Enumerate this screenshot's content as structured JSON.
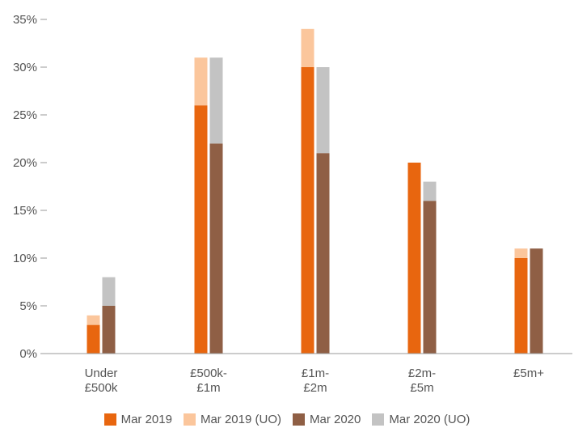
{
  "chart_data": {
    "type": "bar",
    "stacked_pairs": true,
    "categories": [
      [
        "Under",
        "£500k"
      ],
      [
        "£500k-",
        "£1m"
      ],
      [
        "£1m-",
        "£2m"
      ],
      [
        "£2m-",
        "£5m"
      ],
      [
        "£5m+"
      ]
    ],
    "series": [
      {
        "name": "Mar 2019",
        "values": [
          3,
          26,
          30,
          20,
          10
        ]
      },
      {
        "name": "Mar 2019 (UO)",
        "values": [
          1,
          5,
          4,
          0,
          1
        ]
      },
      {
        "name": "Mar 2020",
        "values": [
          5,
          22,
          21,
          16,
          11
        ]
      },
      {
        "name": "Mar 2020 (UO)",
        "values": [
          3,
          9,
          9,
          2,
          0
        ]
      }
    ],
    "stack_groups": [
      [
        "Mar 2019",
        "Mar 2019 (UO)"
      ],
      [
        "Mar 2020",
        "Mar 2020 (UO)"
      ]
    ],
    "ylim": [
      0,
      35
    ],
    "yticks": [
      "0%",
      "5%",
      "10%",
      "15%",
      "20%",
      "25%",
      "30%",
      "35%"
    ],
    "grid": false,
    "legend_position": "bottom",
    "title": "",
    "xlabel": "",
    "ylabel": ""
  },
  "colors": {
    "Mar 2019": "#e8660f",
    "Mar 2019 (UO)": "#fbc69c",
    "Mar 2020": "#8f5f45",
    "Mar 2020 (UO)": "#c3c3c3",
    "axis": "#999999",
    "text": "#555555"
  }
}
